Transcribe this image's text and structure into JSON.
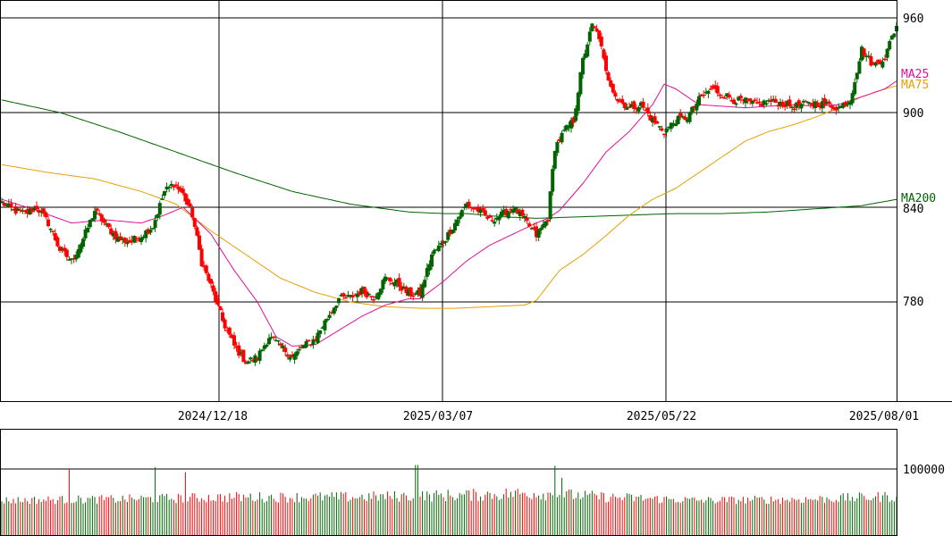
{
  "chart_data": {
    "type": "candlestick",
    "price_axis": {
      "ylim": [
        720,
        965
      ],
      "ticks": [
        960,
        900,
        840,
        780
      ]
    },
    "volume_axis": {
      "ylim": [
        0,
        140000
      ],
      "ticks": [
        100000
      ]
    },
    "date_labels": [
      "2024/12/18",
      "2025/03/07",
      "2025/05/22",
      "2025/08/01"
    ],
    "overlay_labels": [
      {
        "text": "MA25",
        "color": "#e0109a",
        "series": "ma25"
      },
      {
        "text": "MA75",
        "color": "#e8a000",
        "series": "ma75"
      },
      {
        "text": "MA200",
        "color": "#006400",
        "series": "ma200"
      }
    ],
    "colors": {
      "up": "#006400",
      "down": "#ff0000",
      "ma25": "#e0109a",
      "ma75": "#e8a000",
      "ma200": "#006400",
      "grid": "#000000"
    },
    "anchors": {
      "close": [
        [
          0,
          843
        ],
        [
          5,
          838
        ],
        [
          10,
          836
        ],
        [
          15,
          840
        ],
        [
          20,
          830
        ],
        [
          25,
          813
        ],
        [
          30,
          806
        ],
        [
          35,
          820
        ],
        [
          40,
          838
        ],
        [
          45,
          828
        ],
        [
          50,
          820
        ],
        [
          55,
          818
        ],
        [
          60,
          822
        ],
        [
          65,
          828
        ],
        [
          70,
          850
        ],
        [
          74,
          855
        ],
        [
          78,
          848
        ],
        [
          82,
          835
        ],
        [
          86,
          805
        ],
        [
          90,
          790
        ],
        [
          95,
          768
        ],
        [
          100,
          752
        ],
        [
          105,
          742
        ],
        [
          110,
          745
        ],
        [
          115,
          758
        ],
        [
          120,
          752
        ],
        [
          125,
          745
        ],
        [
          130,
          752
        ],
        [
          135,
          757
        ],
        [
          140,
          770
        ],
        [
          145,
          782
        ],
        [
          150,
          783
        ],
        [
          155,
          787
        ],
        [
          160,
          783
        ],
        [
          165,
          795
        ],
        [
          170,
          792
        ],
        [
          175,
          785
        ],
        [
          180,
          785
        ],
        [
          185,
          810
        ],
        [
          190,
          818
        ],
        [
          195,
          830
        ],
        [
          200,
          842
        ],
        [
          205,
          838
        ],
        [
          210,
          832
        ],
        [
          215,
          835
        ],
        [
          220,
          840
        ],
        [
          225,
          832
        ],
        [
          230,
          822
        ],
        [
          235,
          833
        ],
        [
          238,
          878
        ],
        [
          242,
          888
        ],
        [
          246,
          895
        ],
        [
          250,
          933
        ],
        [
          254,
          955
        ],
        [
          257,
          948
        ],
        [
          260,
          925
        ],
        [
          265,
          908
        ],
        [
          270,
          903
        ],
        [
          275,
          905
        ],
        [
          280,
          895
        ],
        [
          285,
          888
        ],
        [
          290,
          895
        ],
        [
          295,
          897
        ],
        [
          300,
          908
        ],
        [
          305,
          915
        ],
        [
          310,
          912
        ],
        [
          315,
          908
        ],
        [
          320,
          907
        ],
        [
          325,
          905
        ],
        [
          330,
          907
        ],
        [
          335,
          906
        ],
        [
          340,
          904
        ],
        [
          345,
          905
        ],
        [
          350,
          906
        ],
        [
          355,
          905
        ],
        [
          360,
          903
        ],
        [
          365,
          908
        ],
        [
          370,
          940
        ],
        [
          375,
          930
        ],
        [
          380,
          935
        ],
        [
          383,
          948
        ],
        [
          385,
          955
        ]
      ],
      "ma25": [
        [
          0,
          845
        ],
        [
          15,
          838
        ],
        [
          30,
          830
        ],
        [
          45,
          832
        ],
        [
          60,
          830
        ],
        [
          70,
          835
        ],
        [
          78,
          840
        ],
        [
          90,
          823
        ],
        [
          100,
          800
        ],
        [
          110,
          780
        ],
        [
          118,
          758
        ],
        [
          125,
          752
        ],
        [
          135,
          753
        ],
        [
          145,
          762
        ],
        [
          155,
          771
        ],
        [
          165,
          778
        ],
        [
          175,
          782
        ],
        [
          180,
          782
        ],
        [
          190,
          793
        ],
        [
          200,
          806
        ],
        [
          210,
          816
        ],
        [
          220,
          823
        ],
        [
          230,
          830
        ],
        [
          235,
          833
        ],
        [
          240,
          838
        ],
        [
          250,
          855
        ],
        [
          260,
          875
        ],
        [
          270,
          888
        ],
        [
          280,
          905
        ],
        [
          285,
          918
        ],
        [
          290,
          915
        ],
        [
          300,
          905
        ],
        [
          310,
          904
        ],
        [
          320,
          903
        ],
        [
          330,
          904
        ],
        [
          340,
          905
        ],
        [
          350,
          904
        ],
        [
          360,
          905
        ],
        [
          370,
          910
        ],
        [
          380,
          915
        ],
        [
          385,
          920
        ]
      ],
      "ma75": [
        [
          0,
          867
        ],
        [
          20,
          862
        ],
        [
          40,
          858
        ],
        [
          60,
          850
        ],
        [
          75,
          842
        ],
        [
          90,
          825
        ],
        [
          105,
          810
        ],
        [
          120,
          795
        ],
        [
          135,
          786
        ],
        [
          150,
          780
        ],
        [
          165,
          777
        ],
        [
          180,
          776
        ],
        [
          195,
          776
        ],
        [
          210,
          777
        ],
        [
          225,
          778
        ],
        [
          230,
          781
        ],
        [
          240,
          800
        ],
        [
          250,
          810
        ],
        [
          260,
          822
        ],
        [
          270,
          835
        ],
        [
          280,
          845
        ],
        [
          290,
          852
        ],
        [
          300,
          862
        ],
        [
          310,
          872
        ],
        [
          320,
          882
        ],
        [
          330,
          888
        ],
        [
          340,
          892
        ],
        [
          350,
          897
        ],
        [
          360,
          903
        ],
        [
          370,
          910
        ],
        [
          380,
          915
        ],
        [
          385,
          917
        ]
      ],
      "ma200": [
        [
          0,
          908
        ],
        [
          25,
          900
        ],
        [
          50,
          888
        ],
        [
          75,
          875
        ],
        [
          100,
          862
        ],
        [
          125,
          850
        ],
        [
          150,
          842
        ],
        [
          175,
          837
        ],
        [
          190,
          836
        ],
        [
          200,
          836
        ],
        [
          215,
          834
        ],
        [
          230,
          833
        ],
        [
          250,
          834
        ],
        [
          270,
          835
        ],
        [
          290,
          836
        ],
        [
          310,
          836
        ],
        [
          330,
          837
        ],
        [
          350,
          839
        ],
        [
          370,
          841
        ],
        [
          385,
          845
        ]
      ],
      "volume_base": [
        [
          0,
          22000
        ],
        [
          50,
          25000
        ],
        [
          100,
          30000
        ],
        [
          150,
          30000
        ],
        [
          200,
          35000
        ],
        [
          230,
          40000
        ],
        [
          260,
          30000
        ],
        [
          300,
          22000
        ],
        [
          350,
          25000
        ],
        [
          385,
          32000
        ]
      ]
    },
    "volume_spikes": [
      [
        29,
        100000
      ],
      [
        66,
        104000
      ],
      [
        79,
        92000
      ],
      [
        178,
        110000
      ],
      [
        179,
        110000
      ],
      [
        238,
        108000
      ],
      [
        241,
        78000
      ]
    ],
    "series_count": 386
  }
}
